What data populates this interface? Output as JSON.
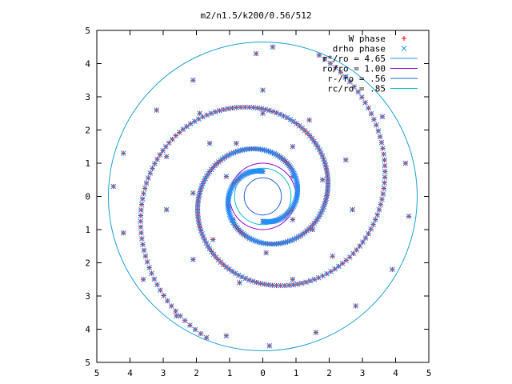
{
  "chart_data": {
    "type": "scatter",
    "title": "m2/n1.5/k200/0.56/512",
    "xlabel": "",
    "ylabel": "",
    "xlim": [
      -5,
      5
    ],
    "ylim": [
      -5,
      5
    ],
    "x_tick_labels": [
      "5",
      "4",
      "3",
      "2",
      "1",
      "0",
      "1",
      "2",
      "3",
      "4",
      "5"
    ],
    "y_tick_labels": [
      "5",
      "4",
      "3",
      "2",
      "1",
      "0",
      "1",
      "2",
      "3",
      "4",
      "5"
    ],
    "grid": false,
    "legend_position": "top-right",
    "series": [
      {
        "name": "W phase",
        "marker": "+",
        "color": "#ff0000",
        "pattern": "two-armed logarithmic spiral (m=2)",
        "r_range": [
          0.56,
          4.65
        ],
        "points": [
          [
            0.3,
            4.5
          ],
          [
            -0.2,
            4.3
          ],
          [
            -2.1,
            3.5
          ],
          [
            -3.2,
            2.6
          ],
          [
            -4.2,
            1.3
          ],
          [
            -4.5,
            0.3
          ],
          [
            -4.2,
            -1.1
          ],
          [
            -3.6,
            -2.5
          ],
          [
            -2.6,
            -3.6
          ],
          [
            -1.1,
            -4.2
          ],
          [
            0.2,
            -4.5
          ],
          [
            1.6,
            -4.1
          ],
          [
            2.8,
            -3.3
          ],
          [
            3.9,
            -2.2
          ],
          [
            4.4,
            -0.6
          ],
          [
            4.3,
            1.0
          ],
          [
            3.6,
            2.4
          ],
          [
            2.5,
            3.6
          ],
          [
            0.0,
            3.2
          ],
          [
            -1.9,
            2.5
          ],
          [
            -2.9,
            1.2
          ],
          [
            -2.9,
            -0.4
          ],
          [
            -2.1,
            -1.9
          ],
          [
            -0.7,
            -2.6
          ],
          [
            0.9,
            -2.5
          ],
          [
            2.1,
            -1.8
          ],
          [
            2.7,
            -0.4
          ],
          [
            2.5,
            1.1
          ],
          [
            1.4,
            2.3
          ],
          [
            0.0,
            2.5
          ],
          [
            -1.6,
            1.6
          ],
          [
            -2.1,
            0.1
          ],
          [
            -1.5,
            -1.3
          ],
          [
            0.1,
            -1.7
          ],
          [
            1.5,
            -1.0
          ],
          [
            1.8,
            0.5
          ],
          [
            0.9,
            1.5
          ],
          [
            -0.8,
            1.6
          ],
          [
            -1.1,
            0.6
          ],
          [
            -0.9,
            -0.7
          ],
          [
            0.9,
            0.6
          ],
          [
            0.9,
            -0.7
          ]
        ]
      },
      {
        "name": "drho phase",
        "marker": "x",
        "color": "#1e90ff",
        "pattern": "two-armed logarithmic spiral (m=2), coincides with W phase",
        "r_range": [
          0.56,
          4.65
        ],
        "points": [
          [
            0.3,
            4.5
          ],
          [
            -0.2,
            4.3
          ],
          [
            -2.1,
            3.5
          ],
          [
            -3.2,
            2.6
          ],
          [
            -4.2,
            1.3
          ],
          [
            -4.5,
            0.3
          ],
          [
            -4.2,
            -1.1
          ],
          [
            -3.6,
            -2.5
          ],
          [
            -2.6,
            -3.6
          ],
          [
            -1.1,
            -4.2
          ],
          [
            0.2,
            -4.5
          ],
          [
            1.6,
            -4.1
          ],
          [
            2.8,
            -3.3
          ],
          [
            3.9,
            -2.2
          ],
          [
            4.4,
            -0.6
          ],
          [
            4.3,
            1.0
          ],
          [
            3.6,
            2.4
          ],
          [
            2.5,
            3.6
          ],
          [
            0.0,
            3.2
          ],
          [
            -1.9,
            2.5
          ],
          [
            -2.9,
            1.2
          ],
          [
            -2.9,
            -0.4
          ],
          [
            -2.1,
            -1.9
          ],
          [
            -0.7,
            -2.6
          ],
          [
            0.9,
            -2.5
          ],
          [
            2.1,
            -1.8
          ],
          [
            2.7,
            -0.4
          ],
          [
            2.5,
            1.1
          ],
          [
            1.4,
            2.3
          ],
          [
            0.0,
            2.5
          ],
          [
            -1.6,
            1.6
          ],
          [
            -2.1,
            0.1
          ],
          [
            -1.5,
            -1.3
          ],
          [
            0.1,
            -1.7
          ],
          [
            1.5,
            -1.0
          ],
          [
            1.8,
            0.5
          ],
          [
            0.9,
            1.5
          ],
          [
            -0.8,
            1.6
          ],
          [
            -1.1,
            0.6
          ],
          [
            -0.9,
            -0.7
          ],
          [
            0.9,
            0.6
          ],
          [
            0.9,
            -0.7
          ]
        ]
      },
      {
        "name": "r*/ro = 4.65",
        "type": "circle",
        "radius": 4.65,
        "color": "#1a9fd0"
      },
      {
        "name": "ro/ro = 1.00",
        "type": "circle",
        "radius": 1.0,
        "color": "#9400d3"
      },
      {
        "name": "r-/ro = .56",
        "type": "circle",
        "radius": 0.56,
        "color": "#1e5fcf"
      },
      {
        "name": "rc/ro = .85",
        "type": "circle",
        "radius": 0.85,
        "color": "#00c0c0"
      }
    ]
  }
}
